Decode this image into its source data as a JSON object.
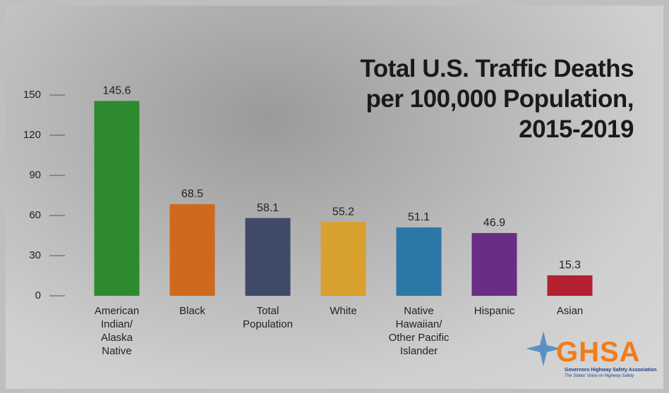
{
  "chart_data": {
    "type": "bar",
    "title": "Total U.S. Traffic Deaths\nper 100,000 Population,\n2015-2019",
    "categories": [
      "American\nIndian/\nAlaska\nNative",
      "Black",
      "Total\nPopulation",
      "White",
      "Native\nHawaiian/\nOther Pacific\nIslander",
      "Hispanic",
      "Asian"
    ],
    "values": [
      145.6,
      68.5,
      58.1,
      55.2,
      51.1,
      46.9,
      15.3
    ],
    "colors": [
      "#2d8a2f",
      "#cf6a1d",
      "#3f4a68",
      "#d8a02f",
      "#2b77a6",
      "#6a2d85",
      "#b3202f"
    ],
    "ylim": [
      0,
      150
    ],
    "yticks": [
      0,
      30,
      60,
      90,
      120,
      150
    ]
  },
  "logo": {
    "name": "GHSA",
    "org": "Governors Highway Safety Association",
    "tagline": "The States' Voice on Highway Safety"
  }
}
